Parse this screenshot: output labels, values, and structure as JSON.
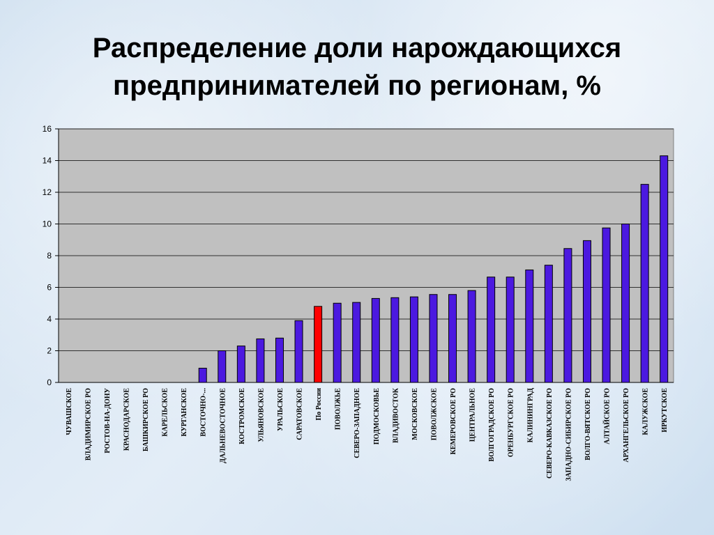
{
  "slide": {
    "title_line1": "Распределение доли нарождающихся",
    "title_line2": "предпринимателей по регионам, %"
  },
  "chart_data": {
    "type": "bar",
    "title": "Распределение доли нарождающихся предпринимателей по регионам, %",
    "xlabel": "",
    "ylabel": "",
    "ylim": [
      0,
      16
    ],
    "yticks": [
      0,
      2,
      4,
      6,
      8,
      10,
      12,
      14,
      16
    ],
    "grid": true,
    "legend": "none",
    "colors": {
      "bar": "#4b19e0",
      "highlight": "#ff0000",
      "plot_bg": "#c0c0c0",
      "grid": "#000000"
    },
    "highlight_category": "По России",
    "categories": [
      "ЧУВАШСКОЕ",
      "ВЛАДИМИРСКОЕ РО",
      "РОСТОВ-НА-ДОНУ",
      "КРАСНОДАРСКОЕ",
      "БАШКИРСКОЕ РО",
      "КАРЕЛЬСКОЕ",
      "КУРГАНСКОЕ",
      "ВОСТОЧНО-...",
      "ДАЛЬНЕВОСТОЧНОЕ",
      "КОСТРОМСКОЕ",
      "УЛЬЯНОВСКОЕ",
      "УРАЛЬСКОЕ",
      "САРАТОВСКОЕ",
      "По России",
      "ПОВОЛЖЬЕ",
      "СЕВЕРО-ЗАПАДНОЕ",
      "ПОДМОСКОВЬЕ",
      "ВЛАДИВОСТОК",
      "МОСКОВСКОЕ",
      "ПОВОЛЖСКОЕ",
      "КЕМЕРОВСКОЕ РО",
      "ЦЕНТРАЛЬНОЕ",
      "ВОЛГОГРАДСКОЕ РО",
      "ОРЕНБУРГСКОЕ РО",
      "КАЛИНИНГРАД",
      "СЕВЕРО-КАВКАЗСКОЕ РО",
      "ЗАПАДНО-СИБИРСКОЕ РО",
      "ВОЛГО-ВЯТСКОЕ РО",
      "АЛТАЙСКОЕ РО",
      "АРХАНГЕЛЬСКОЕ РО",
      "КАЛУЖСКОЕ",
      "ИРКУТСКОЕ"
    ],
    "values": [
      0,
      0,
      0,
      0,
      0,
      0,
      0,
      0.9,
      2.0,
      2.3,
      2.75,
      2.8,
      3.9,
      4.8,
      5.0,
      5.05,
      5.3,
      5.35,
      5.4,
      5.55,
      5.55,
      5.8,
      6.65,
      6.65,
      7.1,
      7.4,
      8.45,
      8.95,
      9.75,
      10.0,
      12.5,
      14.3
    ]
  }
}
